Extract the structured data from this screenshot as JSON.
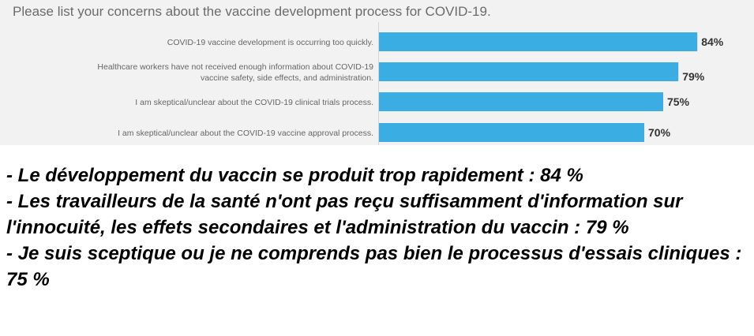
{
  "chart_data": {
    "type": "bar",
    "orientation": "horizontal",
    "title": "Please list your concerns about the vaccine development process for COVID-19.",
    "categories": [
      [
        "COVID-19 vaccine development is occurring too quickly."
      ],
      [
        "Healthcare workers have not received enough information about COVID-19",
        "vaccine safety, side effects, and administration."
      ],
      [
        "I am skeptical/unclear about the COVID-19 clinical trials process."
      ],
      [
        "I am skeptical/unclear about the COVID-19 vaccine approval process."
      ]
    ],
    "values": [
      84,
      79,
      75,
      70
    ],
    "value_labels": [
      "84%",
      "79%",
      "75%",
      "70%"
    ],
    "unit": "%",
    "xlim": [
      0,
      100
    ],
    "bar_color": "#3aaee2",
    "grid": false
  },
  "summary": {
    "lines": [
      "- Le développement du vaccin se produit trop rapidement : 84 %",
      "- Les travailleurs de la santé n'ont pas reçu suffisamment d'information sur l'innocuité, les effets secondaires et l'administration du vaccin : 79 %",
      "- Je suis sceptique ou je ne comprends pas bien le processus d'essais cliniques : 75 %"
    ]
  }
}
